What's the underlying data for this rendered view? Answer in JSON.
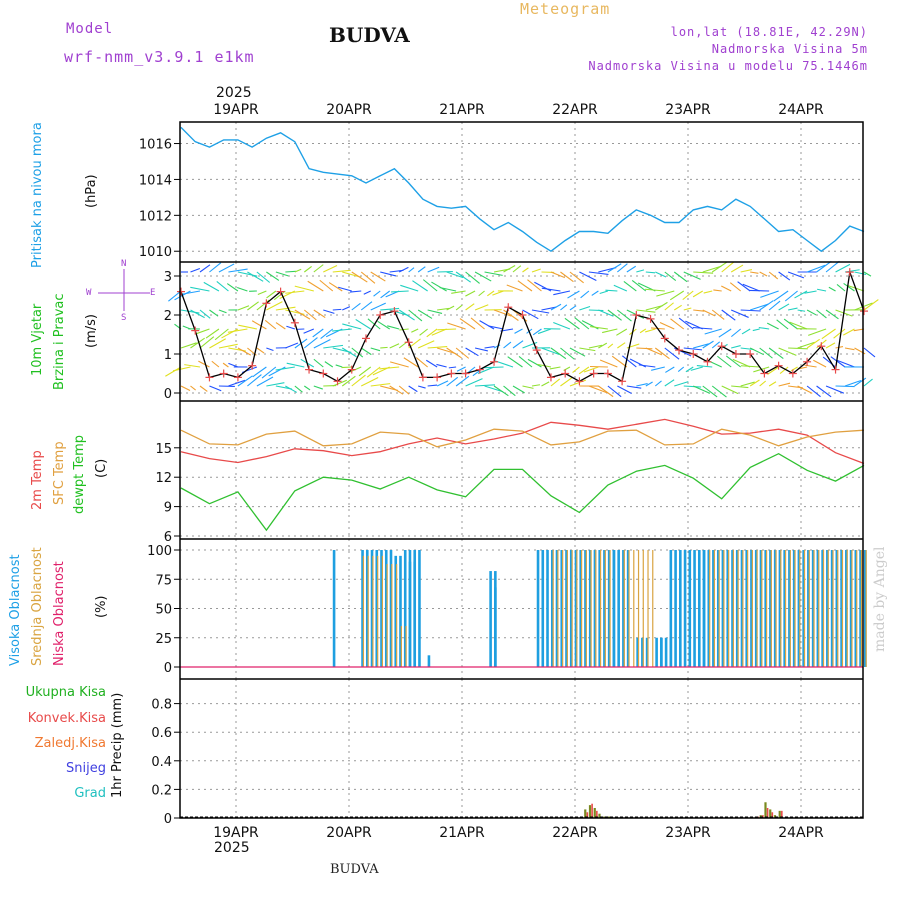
{
  "header": {
    "model_label": "Model",
    "model_value": "wrf-nmm_v3.9.1  e1km",
    "station": "BUDVA",
    "meteogram": "Meteogram",
    "lonlat": "lon,lat (18.81E, 42.29N)",
    "elev": "Nadmorska Visina 5m",
    "elev_model": "Nadmorska Visina u modelu 75.1446m",
    "year_top": "2025",
    "year_bottom": "2025",
    "footer_station": "BUDVA",
    "watermark": "made by Angel"
  },
  "colors": {
    "pressure": "#1ea0e6",
    "temp2m": "#e84a4a",
    "sfc": "#e0a040",
    "dewpt": "#30c030",
    "high": "#1e9fe0",
    "mid": "#d9a441",
    "low": "#e0206a",
    "purple": "#a040d0",
    "wind_black": "#000000"
  },
  "chart_data": [
    {
      "type": "line",
      "panel": "pressure",
      "ylabel_left": "Pritisak na nivou mora",
      "ylabel_unit": "(hPa)",
      "x_labels": [
        "19APR",
        "20APR",
        "21APR",
        "22APR",
        "23APR",
        "24APR"
      ],
      "yticks": [
        "1016",
        "1014",
        "1012",
        "1010"
      ],
      "ylim": [
        1009.5,
        1017.2
      ],
      "x_range_hours": [
        0,
        144
      ],
      "series": [
        {
          "key": "pressure",
          "hours": [
            0,
            3,
            6,
            9,
            12,
            15,
            18,
            21,
            24,
            27,
            30,
            33,
            36,
            39,
            42,
            45,
            48,
            51,
            54,
            57,
            60,
            63,
            66,
            69,
            72,
            75,
            78,
            81,
            84,
            87,
            90,
            93,
            96,
            99,
            102,
            105,
            108,
            111,
            114,
            117,
            120,
            123,
            126,
            129,
            132,
            135,
            138,
            141,
            144
          ],
          "values": [
            1016.9,
            1016.1,
            1015.8,
            1016.2,
            1016.2,
            1015.8,
            1016.3,
            1016.6,
            1016.1,
            1014.6,
            1014.4,
            1014.3,
            1014.2,
            1013.8,
            1014.2,
            1014.6,
            1013.8,
            1012.9,
            1012.5,
            1012.4,
            1012.5,
            1011.8,
            1011.2,
            1011.6,
            1011.1,
            1010.5,
            1010.0,
            1010.6,
            1011.1,
            1011.1,
            1011.0,
            1011.7,
            1012.3,
            1012.0,
            1011.6,
            1011.6,
            1012.3,
            1012.5,
            1012.3,
            1012.9,
            1012.5,
            1011.8,
            1011.1,
            1011.2,
            1010.6,
            1010.0,
            1010.6,
            1011.4,
            1011.1
          ]
        }
      ]
    },
    {
      "type": "line",
      "panel": "wind",
      "ylabel_left": [
        "10m Vjetar",
        "Brzina i Pravac"
      ],
      "ylabel_unit": "(m/s)",
      "compass": {
        "n": "N",
        "s": "S",
        "e": "E",
        "w": "W"
      },
      "yticks": [
        "3",
        "2",
        "1",
        "0"
      ],
      "ylim": [
        -0.2,
        3.4
      ],
      "series": [
        {
          "key": "speed",
          "hours": [
            0,
            3,
            6,
            9,
            12,
            15,
            18,
            21,
            24,
            27,
            30,
            33,
            36,
            39,
            42,
            45,
            48,
            51,
            54,
            57,
            60,
            63,
            66,
            69,
            72,
            75,
            78,
            81,
            84,
            87,
            90,
            93,
            96,
            99,
            102,
            105,
            108,
            111,
            114,
            117,
            120,
            123,
            126,
            129,
            132,
            135,
            138,
            141,
            144
          ],
          "values": [
            2.6,
            1.6,
            0.4,
            0.5,
            0.4,
            0.7,
            2.3,
            2.6,
            1.8,
            0.6,
            0.5,
            0.3,
            0.6,
            1.4,
            2.0,
            2.1,
            1.3,
            0.4,
            0.4,
            0.5,
            0.5,
            0.6,
            0.8,
            2.2,
            2.0,
            1.1,
            0.4,
            0.5,
            0.3,
            0.5,
            0.5,
            0.3,
            2.0,
            1.9,
            1.4,
            1.1,
            1.0,
            0.8,
            1.2,
            1.0,
            1.0,
            0.5,
            0.7,
            0.5,
            0.8,
            1.2,
            0.6,
            3.1,
            2.1
          ]
        }
      ]
    },
    {
      "type": "line",
      "panel": "temperature",
      "ylabel_left": [
        "2m Temp",
        "SFC Temp",
        "dewpt Temp"
      ],
      "ylabel_unit": "(C)",
      "yticks": [
        "15",
        "12",
        "9",
        "6"
      ],
      "ylim": [
        5.8,
        18.0
      ],
      "series": [
        {
          "key": "temp2m",
          "hours": [
            0,
            6,
            12,
            18,
            24,
            30,
            36,
            42,
            48,
            54,
            60,
            66,
            72,
            78,
            84,
            90,
            96,
            102,
            108,
            114,
            120,
            126,
            132,
            138,
            144
          ],
          "values": [
            14.6,
            13.9,
            13.5,
            14.1,
            14.9,
            14.7,
            14.2,
            14.6,
            15.4,
            16.0,
            15.4,
            15.9,
            16.5,
            17.6,
            17.3,
            16.9,
            17.4,
            17.9,
            17.2,
            16.4,
            16.5,
            16.9,
            16.3,
            14.5,
            13.4
          ]
        },
        {
          "key": "sfc",
          "hours": [
            0,
            6,
            12,
            18,
            24,
            30,
            36,
            42,
            48,
            54,
            60,
            66,
            72,
            78,
            84,
            90,
            96,
            102,
            108,
            114,
            120,
            126,
            132,
            138,
            144
          ],
          "values": [
            16.8,
            15.4,
            15.3,
            16.4,
            16.7,
            15.2,
            15.4,
            16.6,
            16.4,
            15.1,
            15.8,
            16.9,
            16.7,
            15.3,
            15.6,
            16.7,
            16.8,
            15.3,
            15.4,
            16.9,
            16.3,
            15.2,
            16.1,
            16.6,
            16.8
          ]
        },
        {
          "key": "dewpt",
          "hours": [
            0,
            6,
            12,
            18,
            24,
            30,
            36,
            42,
            48,
            54,
            60,
            66,
            72,
            78,
            84,
            90,
            96,
            102,
            108,
            114,
            120,
            126,
            132,
            138,
            144
          ],
          "values": [
            10.9,
            9.3,
            10.5,
            6.6,
            10.6,
            12.0,
            11.7,
            10.8,
            12.0,
            10.7,
            10.0,
            12.8,
            12.8,
            10.1,
            8.4,
            11.2,
            12.6,
            13.2,
            11.9,
            9.8,
            13.0,
            14.4,
            12.7,
            11.6,
            13.2
          ]
        }
      ]
    },
    {
      "type": "bar",
      "panel": "cloud",
      "ylabel_left": [
        "Visoka Oblacnost",
        "Srednja Oblacnost",
        "Niska Oblacnost"
      ],
      "ylabel_unit": "(%)",
      "yticks": [
        "100",
        "75",
        "50",
        "25",
        "0"
      ],
      "ylim": [
        -6,
        100
      ],
      "series": [
        {
          "key": "high",
          "segments": [
            [
              32,
              32,
              100
            ],
            [
              38,
              44,
              100
            ],
            [
              45,
              46,
              95
            ],
            [
              47,
              48,
              100
            ],
            [
              48,
              49,
              90
            ],
            [
              49,
              50,
              100
            ],
            [
              52,
              52,
              10
            ],
            [
              65,
              66,
              82
            ],
            [
              66,
              66,
              68
            ],
            [
              75,
              84,
              100
            ],
            [
              85,
              91,
              100
            ],
            [
              91,
              94,
              100
            ],
            [
              96,
              98,
              25
            ],
            [
              100,
              101,
              25
            ],
            [
              101,
              103,
              25
            ],
            [
              103,
              110,
              100
            ],
            [
              110,
              112,
              100
            ],
            [
              112,
              114,
              100
            ],
            [
              114,
              144,
              100
            ]
          ]
        },
        {
          "key": "mid",
          "segments": [
            [
              38,
              42,
              95
            ],
            [
              43,
              45,
              88
            ],
            [
              46,
              47,
              35
            ],
            [
              78,
              90,
              100
            ],
            [
              93,
              96,
              100
            ],
            [
              97,
              99,
              100
            ],
            [
              111,
              144,
              100
            ]
          ]
        },
        {
          "key": "low",
          "segments": []
        }
      ]
    },
    {
      "type": "bar",
      "panel": "precip",
      "ylabel_left": [
        "Ukupna Kisa",
        "Konvek.Kisa",
        "Zaledj.Kisa",
        "Snijeg",
        "Grad"
      ],
      "ylabel_unit": "1hr Precip (mm)",
      "yticks": [
        "0.8",
        "0.6",
        "0.4",
        "0.2",
        "0"
      ],
      "ylim": [
        0,
        0.95
      ],
      "series": [
        {
          "key": "total",
          "hours": [
            85,
            86,
            87,
            88,
            89,
            90,
            121,
            122,
            123,
            124,
            125,
            126
          ],
          "values": [
            0.06,
            0.09,
            0.07,
            0.03,
            0.01,
            0.01,
            0.01,
            0.02,
            0.11,
            0.06,
            0.02,
            0.05
          ]
        },
        {
          "key": "convective",
          "hours": [
            85,
            86,
            87,
            121,
            122,
            123,
            124,
            125,
            126
          ],
          "values": [
            0.04,
            0.1,
            0.05,
            0.01,
            0.02,
            0.07,
            0.04,
            0.01,
            0.05
          ]
        }
      ]
    }
  ]
}
